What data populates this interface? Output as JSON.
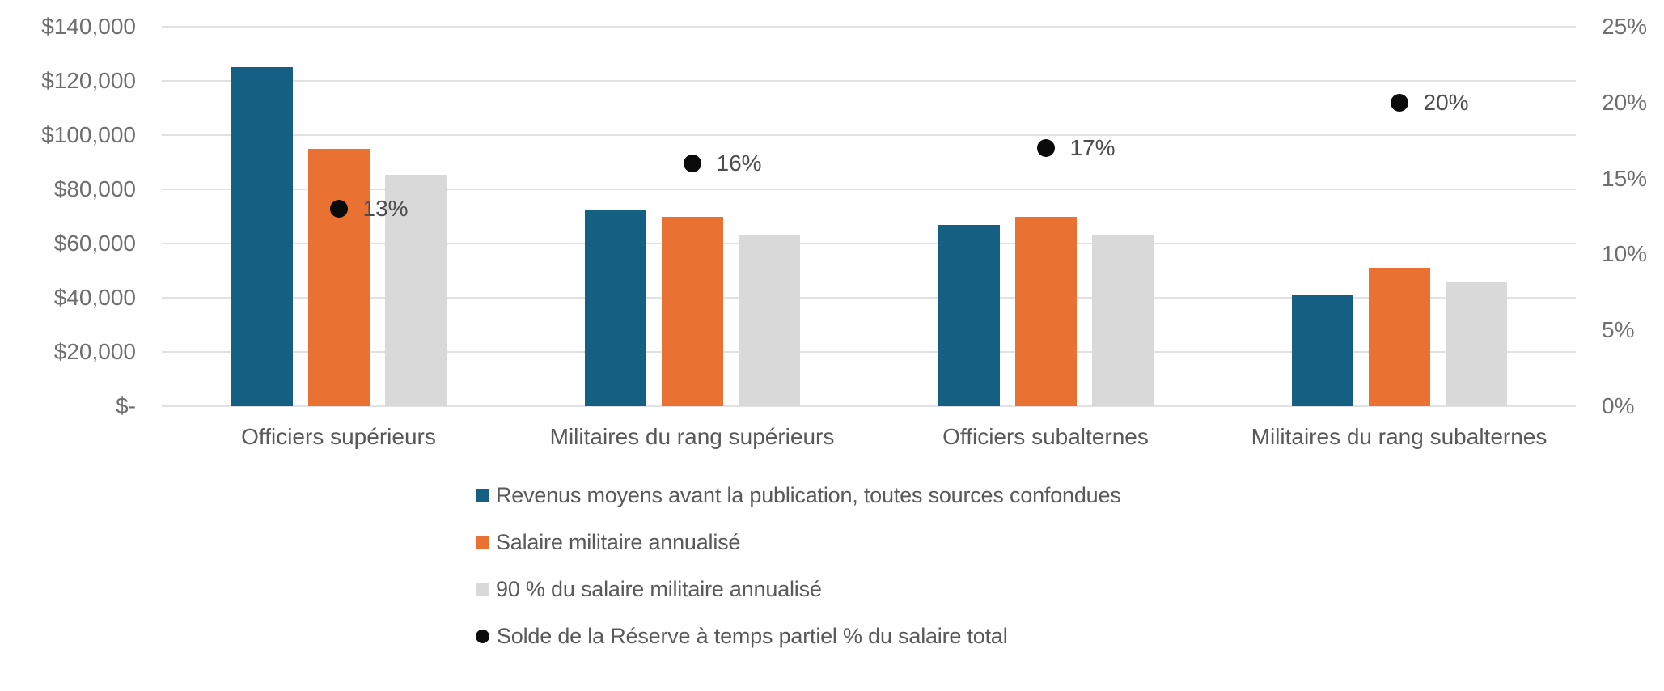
{
  "chart_data": {
    "type": "bar",
    "subtype": "clustered-bar-with-scatter-overlay",
    "title": "",
    "categories": [
      "Officiers supérieurs",
      "Militaires du rang supérieurs",
      "Officiers subalternes",
      "Militaires du rang subalternes"
    ],
    "series": [
      {
        "name": "Revenus moyens avant la publication, toutes sources confondues",
        "type": "bar",
        "axis": "left",
        "color": "#156082",
        "values": [
          125000,
          72500,
          67000,
          41000
        ]
      },
      {
        "name": "Salaire militaire annualisé",
        "type": "bar",
        "axis": "left",
        "color": "#E97132",
        "values": [
          95000,
          70000,
          70000,
          51000
        ]
      },
      {
        "name": "90 % du salaire militaire annualisé",
        "type": "bar",
        "axis": "left",
        "color": "#D9D9D9",
        "values": [
          85500,
          63000,
          63000,
          45900
        ]
      },
      {
        "name": "Solde de la Réserve à temps partiel % du salaire total",
        "type": "scatter",
        "axis": "right",
        "color": "#0B0B0B",
        "values": [
          13,
          16,
          17,
          20
        ],
        "point_labels": [
          "13%",
          "16%",
          "17%",
          "20%"
        ]
      }
    ],
    "left_axis": {
      "min": 0,
      "max": 140000,
      "tick_step": 20000,
      "tick_labels": [
        "$-",
        "$20,000",
        "$40,000",
        "$60,000",
        "$80,000",
        "$100,000",
        "$120,000",
        "$140,000"
      ]
    },
    "right_axis": {
      "min": 0,
      "max": 25,
      "tick_step": 5,
      "tick_labels": [
        "0%",
        "5%",
        "10%",
        "15%",
        "20%",
        "25%"
      ]
    },
    "grid": true,
    "gridline_color": "#e2e2e2",
    "legend_position": "bottom-left",
    "axis_text_color": "#6e6e6e",
    "category_text_color": "#595959",
    "point_label_color": "#4d4d4d"
  }
}
